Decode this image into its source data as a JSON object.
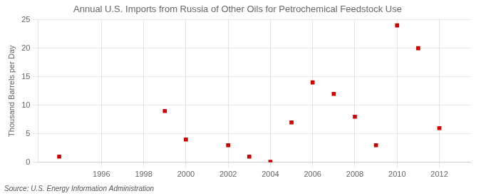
{
  "chart_data": {
    "type": "scatter",
    "title": "Annual U.S. Imports from Russia of Other Oils for Petrochemical Feedstock Use",
    "ylabel": "Thousand Barrels per Day",
    "source": "Source: U.S. Energy Information Administration",
    "x": [
      1994,
      1999,
      2000,
      2002,
      2003,
      2004,
      2005,
      2006,
      2007,
      2008,
      2009,
      2010,
      2011,
      2012
    ],
    "values": [
      1.0,
      9.0,
      4.0,
      3.0,
      1.0,
      0.1,
      7.0,
      14.0,
      12.0,
      8.0,
      3.0,
      24.0,
      20.0,
      6.0
    ],
    "color": "#cc0000",
    "marker": "square",
    "xlim": [
      1993,
      2013.5
    ],
    "ylim": [
      0,
      25
    ],
    "xticks": [
      1996,
      1998,
      2000,
      2002,
      2004,
      2006,
      2008,
      2010,
      2012
    ],
    "yticks": [
      0,
      5,
      10,
      15,
      20,
      25
    ],
    "grid": true
  }
}
